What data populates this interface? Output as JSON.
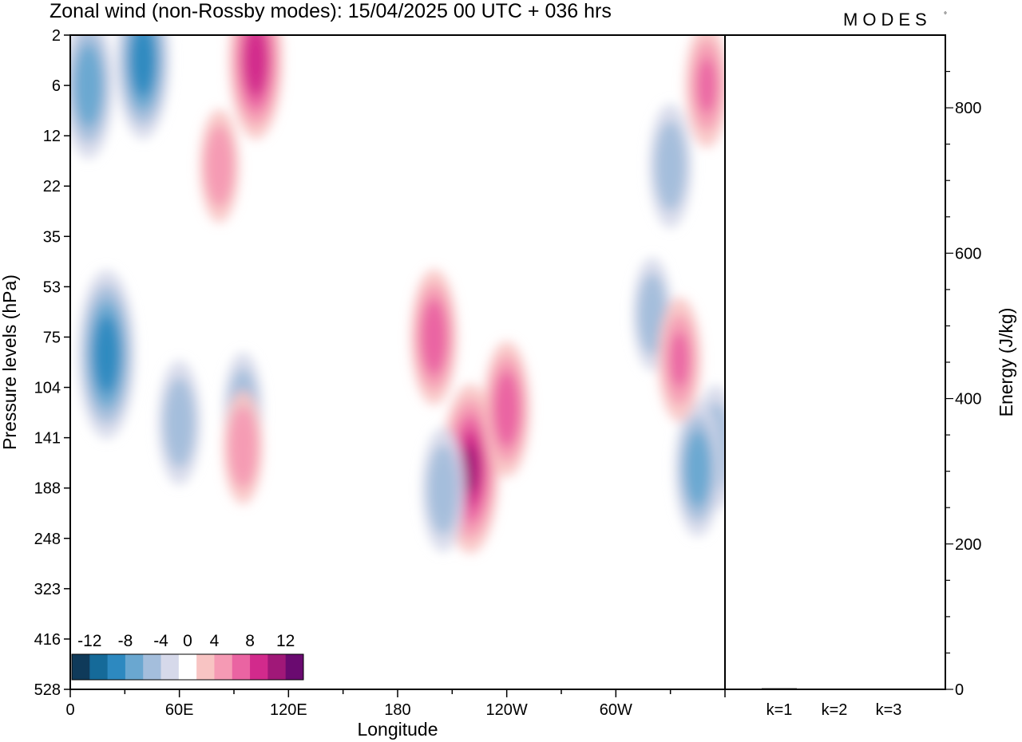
{
  "header": {
    "title": "Zonal wind (non-Rossby modes):  15/04/2025  00 UTC  + 036 hrs",
    "brand": "MODES",
    "brand_mark": "°"
  },
  "chart_data": [
    {
      "type": "heatmap",
      "title": "Zonal wind (non-Rossby modes):  15/04/2025  00 UTC  + 036 hrs",
      "xlabel": "Longitude",
      "ylabel": "Pressure levels (hPa)",
      "x_ticks": [
        "0",
        "60E",
        "120E",
        "180",
        "120W",
        "60W"
      ],
      "y_ticks": [
        "2",
        "6",
        "12",
        "22",
        "35",
        "53",
        "75",
        "104",
        "141",
        "188",
        "248",
        "323",
        "416",
        "528"
      ],
      "xlim": [
        0,
        360
      ],
      "y_scale": "pressure levels, top to bottom",
      "grid": false,
      "colorbar": {
        "placement": "bottom-left",
        "tick_labels": [
          "-12",
          "-8",
          "-4",
          "0",
          "4",
          "8",
          "12"
        ],
        "bins": [
          -14,
          -12,
          -10,
          -8,
          -6,
          -4,
          -2,
          2,
          4,
          6,
          8,
          10,
          12,
          14
        ],
        "colors": [
          "#0f3a5a",
          "#156a99",
          "#2d89c0",
          "#6aa7d0",
          "#a4bedc",
          "#d6d9ea",
          "#ffffff",
          "#f8c4c3",
          "#f59ab4",
          "#ea64a2",
          "#d22a8c",
          "#a01878",
          "#6a0a70"
        ]
      },
      "features": [
        {
          "lon": 40,
          "level": 4,
          "value": -9
        },
        {
          "lon": 10,
          "level": 6,
          "value": -8
        },
        {
          "lon": 20,
          "level": 85,
          "value": -10
        },
        {
          "lon": 60,
          "level": 130,
          "value": -6
        },
        {
          "lon": 95,
          "level": 120,
          "value": -5
        },
        {
          "lon": 102,
          "level": 4,
          "value": 9
        },
        {
          "lon": 82,
          "level": 18,
          "value": 5
        },
        {
          "lon": 95,
          "level": 150,
          "value": 5
        },
        {
          "lon": 200,
          "level": 75,
          "value": 7
        },
        {
          "lon": 220,
          "level": 170,
          "value": 10
        },
        {
          "lon": 240,
          "level": 120,
          "value": 7
        },
        {
          "lon": 205,
          "level": 190,
          "value": -6
        },
        {
          "lon": 330,
          "level": 18,
          "value": -6
        },
        {
          "lon": 320,
          "level": 65,
          "value": -5
        },
        {
          "lon": 355,
          "level": 150,
          "value": -6
        },
        {
          "lon": 345,
          "level": 170,
          "value": -7
        },
        {
          "lon": 335,
          "level": 88,
          "value": 6
        },
        {
          "lon": 350,
          "level": 6,
          "value": 6
        }
      ]
    },
    {
      "type": "bar",
      "categories": [
        "k=1",
        "k=2",
        "k=3"
      ],
      "values": [
        1.5,
        1.0,
        0.8
      ],
      "ylabel": "Energy (J/kg)",
      "y_ticks": [
        "0",
        "200",
        "400",
        "600",
        "800"
      ],
      "ylim": [
        0,
        900
      ],
      "yaxis_side": "right"
    }
  ]
}
